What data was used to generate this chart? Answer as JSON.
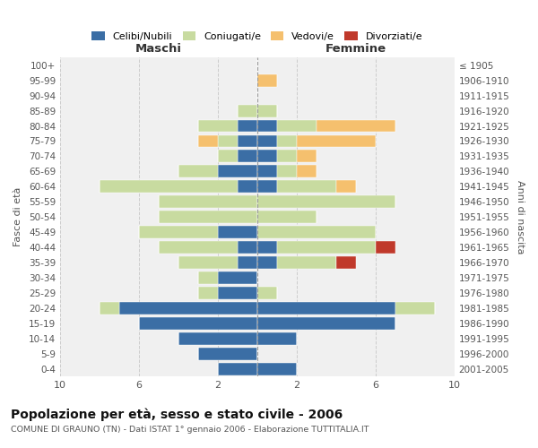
{
  "age_groups": [
    "100+",
    "95-99",
    "90-94",
    "85-89",
    "80-84",
    "75-79",
    "70-74",
    "65-69",
    "60-64",
    "55-59",
    "50-54",
    "45-49",
    "40-44",
    "35-39",
    "30-34",
    "25-29",
    "20-24",
    "15-19",
    "10-14",
    "5-9",
    "0-4"
  ],
  "birth_years": [
    "≤ 1905",
    "1906-1910",
    "1911-1915",
    "1916-1920",
    "1921-1925",
    "1926-1930",
    "1931-1935",
    "1936-1940",
    "1941-1945",
    "1946-1950",
    "1951-1955",
    "1956-1960",
    "1961-1965",
    "1966-1970",
    "1971-1975",
    "1976-1980",
    "1981-1985",
    "1986-1990",
    "1991-1995",
    "1996-2000",
    "2001-2005"
  ],
  "maschi": {
    "celibi": [
      0,
      0,
      0,
      0,
      1,
      1,
      1,
      2,
      1,
      0,
      0,
      2,
      1,
      1,
      2,
      2,
      7,
      6,
      4,
      3,
      2
    ],
    "coniugati": [
      0,
      0,
      0,
      1,
      2,
      1,
      1,
      2,
      7,
      5,
      5,
      4,
      4,
      3,
      1,
      1,
      1,
      0,
      0,
      0,
      0
    ],
    "vedovi": [
      0,
      0,
      0,
      0,
      0,
      1,
      0,
      0,
      0,
      0,
      0,
      0,
      0,
      0,
      0,
      0,
      0,
      0,
      0,
      0,
      0
    ],
    "divorziati": [
      0,
      0,
      0,
      0,
      0,
      0,
      0,
      0,
      0,
      0,
      0,
      0,
      0,
      0,
      0,
      0,
      0,
      0,
      0,
      0,
      0
    ]
  },
  "femmine": {
    "nubili": [
      0,
      0,
      0,
      0,
      1,
      1,
      1,
      1,
      1,
      0,
      0,
      0,
      1,
      1,
      0,
      0,
      7,
      7,
      2,
      0,
      2
    ],
    "coniugate": [
      0,
      0,
      0,
      1,
      2,
      1,
      1,
      1,
      3,
      7,
      3,
      6,
      5,
      3,
      0,
      1,
      2,
      0,
      0,
      0,
      0
    ],
    "vedove": [
      0,
      1,
      0,
      0,
      4,
      4,
      1,
      1,
      1,
      0,
      0,
      0,
      0,
      0,
      0,
      0,
      0,
      0,
      0,
      0,
      0
    ],
    "divorziate": [
      0,
      0,
      0,
      0,
      0,
      0,
      0,
      0,
      0,
      0,
      0,
      0,
      1,
      1,
      0,
      0,
      0,
      0,
      0,
      0,
      0
    ]
  },
  "colors": {
    "celibi": "#3b6ea5",
    "coniugati": "#c8dba0",
    "vedovi": "#f5c06e",
    "divorziati": "#c0392b"
  },
  "xlim": 10,
  "title": "Popolazione per età, sesso e stato civile - 2006",
  "subtitle": "COMUNE DI GRAUNO (TN) - Dati ISTAT 1° gennaio 2006 - Elaborazione TUTTITALIA.IT",
  "ylabel_left": "Fasce di età",
  "ylabel_right": "Anni di nascita",
  "xlabel_maschi": "Maschi",
  "xlabel_femmine": "Femmine"
}
